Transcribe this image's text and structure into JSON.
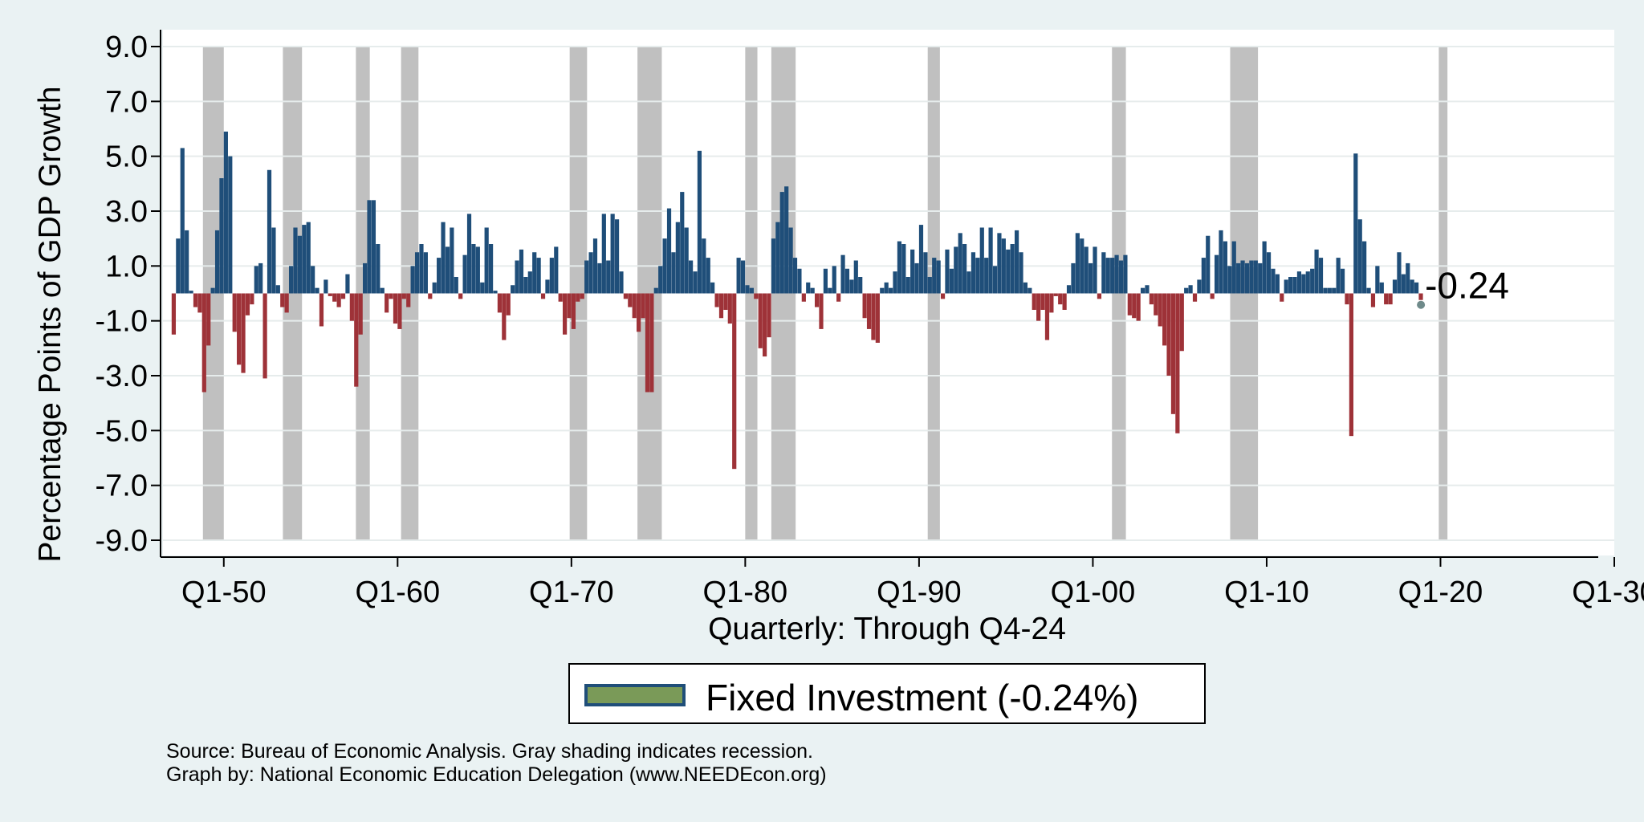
{
  "chart_data": {
    "type": "bar",
    "title": "",
    "ylabel": "Percentage Points of GDP Growth",
    "xlabel": "Quarterly: Through Q4-24",
    "ylim": [
      -9.0,
      9.0
    ],
    "yticks": [
      "9.0",
      "7.0",
      "5.0",
      "3.0",
      "1.0",
      "-1.0",
      "-3.0",
      "-5.0",
      "-7.0",
      "-9.0"
    ],
    "xticks": [
      "Q1-50",
      "Q1-60",
      "Q1-70",
      "Q1-80",
      "Q1-90",
      "Q1-00",
      "Q1-10",
      "Q1-20",
      "Q1-30"
    ],
    "xticks_year": [
      1950,
      1960,
      1970,
      1980,
      1990,
      2000,
      2010,
      2020,
      2030
    ],
    "xlim_year": [
      1946.5,
      2030.0
    ],
    "grid": true,
    "first_quarter": 1947.0,
    "series": [
      {
        "name": "Fixed Investment",
        "positive_color": "#1f4e79",
        "negative_color": "#9e3238",
        "values": [
          -1.5,
          2.0,
          5.3,
          2.3,
          0.1,
          -0.5,
          -0.7,
          -3.6,
          -1.9,
          0.2,
          2.3,
          4.2,
          5.9,
          5.0,
          -1.4,
          -2.6,
          -2.9,
          -0.8,
          -0.4,
          1.0,
          1.1,
          -3.1,
          4.5,
          2.4,
          0.3,
          -0.5,
          -0.7,
          1.0,
          2.4,
          2.1,
          2.5,
          2.6,
          1.0,
          0.2,
          -1.2,
          0.5,
          -0.1,
          -0.3,
          -0.5,
          -0.2,
          0.7,
          -1.0,
          -3.4,
          -1.5,
          1.1,
          3.4,
          3.4,
          1.8,
          0.2,
          -0.7,
          -0.2,
          -1.1,
          -1.3,
          -0.2,
          -0.5,
          1.0,
          1.5,
          1.8,
          1.5,
          -0.2,
          0.4,
          1.3,
          2.6,
          1.7,
          2.4,
          0.6,
          -0.2,
          1.4,
          2.9,
          1.8,
          1.7,
          0.4,
          2.4,
          1.8,
          0.1,
          -0.7,
          -1.7,
          -0.8,
          0.3,
          1.2,
          1.6,
          0.6,
          0.8,
          1.5,
          1.3,
          -0.2,
          0.5,
          1.3,
          1.7,
          -0.3,
          -1.5,
          -0.9,
          -1.3,
          -0.3,
          -0.2,
          1.2,
          1.5,
          2.0,
          1.1,
          2.9,
          1.2,
          2.9,
          2.7,
          0.8,
          -0.2,
          -0.5,
          -0.9,
          -1.4,
          -0.9,
          -3.6,
          -3.6,
          0.2,
          1.0,
          2.0,
          3.1,
          1.5,
          2.6,
          3.7,
          2.4,
          1.2,
          0.8,
          5.2,
          2.0,
          1.3,
          0.4,
          -0.5,
          -0.9,
          -0.6,
          -1.1,
          -6.4,
          1.3,
          1.2,
          0.3,
          0.2,
          -0.2,
          -2.0,
          -2.3,
          -1.6,
          2.0,
          2.6,
          3.7,
          3.9,
          2.4,
          1.3,
          0.9,
          -0.3,
          0.4,
          0.2,
          -0.5,
          -1.3,
          0.9,
          0.2,
          1.0,
          -0.3,
          1.4,
          0.9,
          0.5,
          1.2,
          0.6,
          -0.9,
          -1.3,
          -1.7,
          -1.8,
          0.2,
          0.4,
          0.2,
          0.8,
          1.9,
          1.8,
          0.6,
          1.6,
          1.1,
          2.5,
          1.5,
          0.6,
          1.3,
          1.2,
          -0.2,
          1.6,
          0.9,
          1.7,
          2.2,
          1.8,
          0.8,
          1.5,
          1.3,
          2.4,
          1.3,
          2.4,
          1.0,
          2.2,
          2.0,
          1.6,
          1.8,
          2.3,
          1.5,
          0.4,
          0.2,
          -0.6,
          -1.0,
          -0.6,
          -1.7,
          -0.7,
          -0.1,
          -0.4,
          -0.6,
          0.3,
          1.1,
          2.2,
          2.0,
          1.7,
          1.1,
          1.7,
          -0.2,
          1.5,
          1.3,
          1.3,
          1.4,
          1.2,
          1.4,
          -0.8,
          -0.9,
          -1.0,
          0.2,
          0.3,
          -0.4,
          -0.8,
          -1.2,
          -1.9,
          -3.0,
          -4.4,
          -5.1,
          -2.1,
          0.2,
          0.3,
          -0.3,
          0.5,
          1.3,
          2.1,
          -0.2,
          1.4,
          2.3,
          1.9,
          1.0,
          1.9,
          1.1,
          1.2,
          1.1,
          1.2,
          1.2,
          1.1,
          1.9,
          1.5,
          0.9,
          0.7,
          -0.3,
          0.5,
          0.6,
          0.6,
          0.8,
          0.7,
          0.8,
          0.9,
          1.6,
          1.3,
          0.2,
          0.2,
          0.2,
          1.3,
          0.9,
          -0.4,
          -5.2,
          5.1,
          2.7,
          1.9,
          0.2,
          -0.5,
          1.0,
          0.4,
          -0.4,
          -0.4,
          0.5,
          1.5,
          0.7,
          1.1,
          0.5,
          0.4,
          -0.24
        ]
      }
    ],
    "recessions": [
      [
        1948.8,
        1950.0
      ],
      [
        1953.4,
        1954.5
      ],
      [
        1957.6,
        1958.4
      ],
      [
        1960.2,
        1961.2
      ],
      [
        1969.9,
        1970.9
      ],
      [
        1973.8,
        1975.2
      ],
      [
        1980.0,
        1980.7
      ],
      [
        1981.5,
        1982.9
      ],
      [
        1990.5,
        1991.2
      ],
      [
        2001.1,
        2001.9
      ],
      [
        2007.9,
        2009.5
      ],
      [
        2019.9,
        2020.4
      ]
    ],
    "end_label": "-0.24",
    "legend_label": "Fixed Investment (-0.24%)"
  },
  "source_line1": "Source: Bureau of Economic Analysis. Gray shading indicates recession.",
  "source_line2": "Graph by: National Economic Education Delegation (www.NEEDEcon.org)",
  "colors": {
    "background": "#eaf2f3",
    "plot_background": "#ffffff",
    "recession": "#c0c0c0",
    "positive": "#1f4e79",
    "negative": "#9e3238",
    "legend_fill": "#7a9a58"
  }
}
